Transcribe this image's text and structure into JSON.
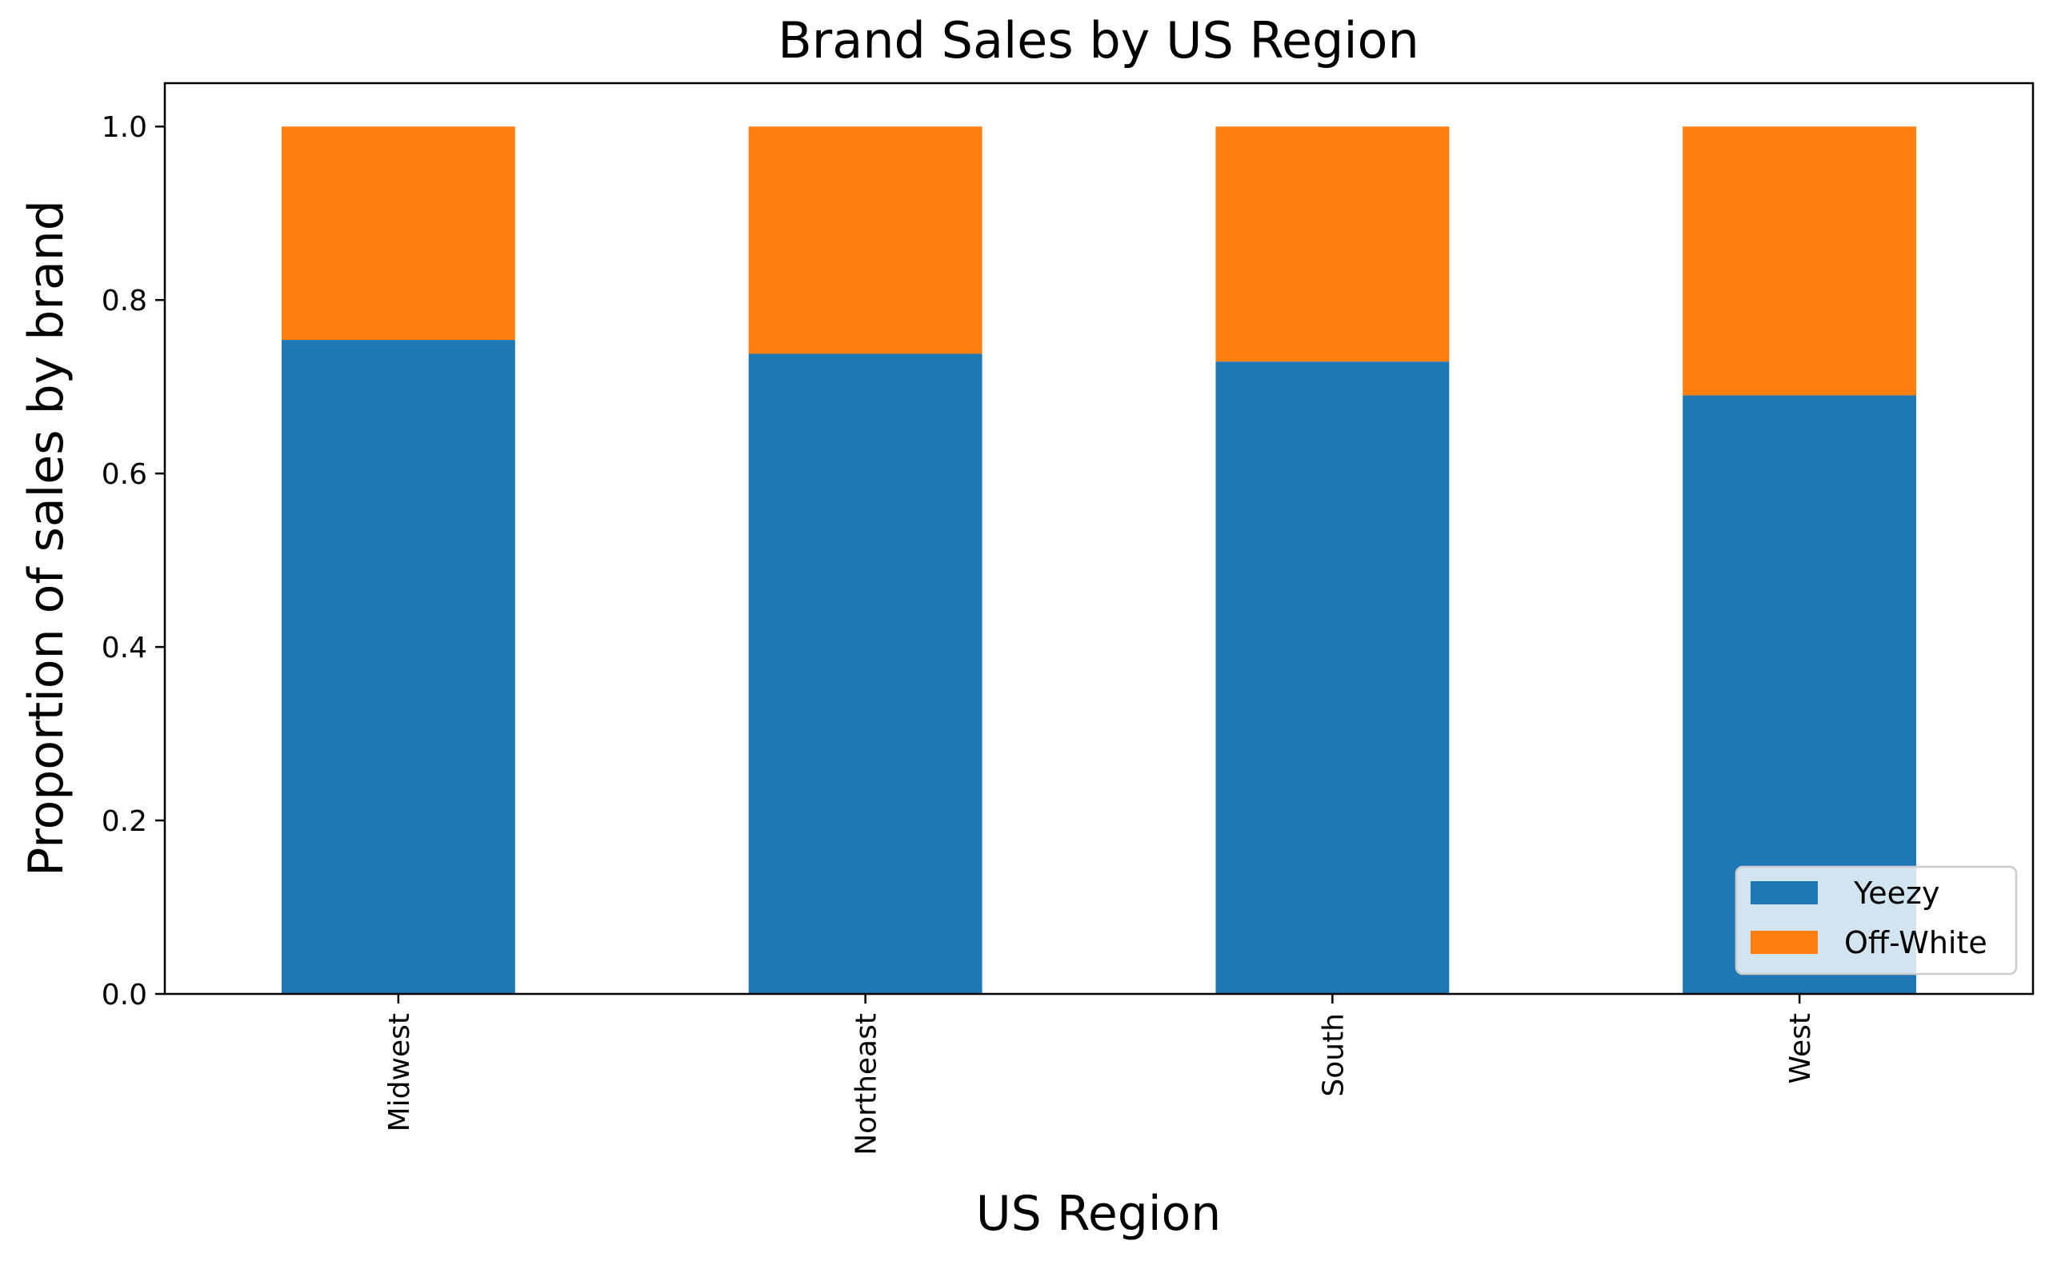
{
  "chart_data": {
    "type": "bar",
    "stacked": true,
    "title": "Brand Sales by US Region",
    "xlabel": "US Region",
    "ylabel": "Proportion of sales by brand",
    "categories": [
      "Midwest",
      "Northeast",
      "South",
      "West"
    ],
    "series": [
      {
        "name": " Yeezy",
        "color": "#1f77b4",
        "values": [
          0.754,
          0.738,
          0.729,
          0.69
        ]
      },
      {
        "name": "Off-White",
        "color": "#ff7f0e",
        "values": [
          0.246,
          0.262,
          0.271,
          0.31
        ]
      }
    ],
    "ylim": [
      0,
      1.05
    ],
    "yticks": [
      "0.0",
      "0.2",
      "0.4",
      "0.6",
      "0.8",
      "1.0"
    ],
    "grid": false,
    "legend_position": "lower-right"
  }
}
